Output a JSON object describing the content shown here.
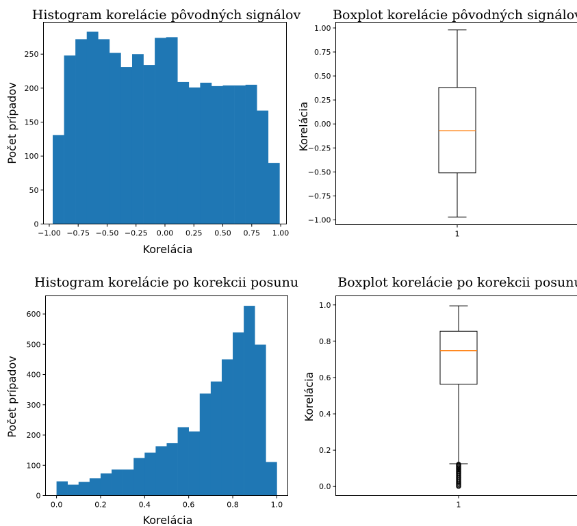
{
  "chart_data": [
    {
      "type": "histogram",
      "title": "Histogram korelácie pôvodných signálov",
      "xlabel": "Korelácia",
      "ylabel": "Počet prípadov",
      "xlim": [
        -1.05,
        1.05
      ],
      "ylim": [
        0,
        297
      ],
      "bin_edges": [
        -0.97,
        -0.872,
        -0.774,
        -0.676,
        -0.578,
        -0.48,
        -0.382,
        -0.284,
        -0.186,
        -0.088,
        0.01,
        0.108,
        0.206,
        0.304,
        0.402,
        0.5,
        0.598,
        0.696,
        0.794,
        0.892,
        0.99
      ],
      "counts": [
        131,
        248,
        272,
        283,
        272,
        252,
        231,
        250,
        234,
        274,
        275,
        209,
        201,
        208,
        203,
        204,
        204,
        205,
        167,
        90
      ],
      "xticks": [
        -1.0,
        -0.75,
        -0.5,
        -0.25,
        0.0,
        0.25,
        0.5,
        0.75,
        1.0
      ],
      "xtick_labels": [
        "−1.00",
        "−0.75",
        "−0.50",
        "−0.25",
        "0.00",
        "0.25",
        "0.50",
        "0.75",
        "1.00"
      ],
      "yticks": [
        0,
        50,
        100,
        150,
        200,
        250
      ],
      "ytick_labels": [
        "0",
        "50",
        "100",
        "150",
        "200",
        "250"
      ]
    },
    {
      "type": "boxplot",
      "title": "Boxplot korelácie pôvodných signálov",
      "xlabel": "",
      "ylabel": "Korelácia",
      "ylim": [
        -1.05,
        1.06
      ],
      "category": "1",
      "whisker_low": -0.97,
      "q1": -0.51,
      "median": -0.07,
      "q3": 0.38,
      "whisker_high": 0.98,
      "outliers": [],
      "yticks": [
        -1.0,
        -0.75,
        -0.5,
        -0.25,
        0.0,
        0.25,
        0.5,
        0.75,
        1.0
      ],
      "ytick_labels": [
        "−1.00",
        "−0.75",
        "−0.50",
        "−0.25",
        "0.00",
        "0.25",
        "0.50",
        "0.75",
        "1.00"
      ]
    },
    {
      "type": "histogram",
      "title": "Histogram korelácie po korekcii posunu",
      "xlabel": "Korelácia",
      "ylabel": "Počet prípadov",
      "xlim": [
        -0.05,
        1.05
      ],
      "ylim": [
        0,
        660
      ],
      "bin_edges": [
        0.0,
        0.05,
        0.1,
        0.15,
        0.2,
        0.25,
        0.3,
        0.35,
        0.4,
        0.45,
        0.5,
        0.55,
        0.6,
        0.65,
        0.7,
        0.75,
        0.8,
        0.85,
        0.9,
        0.95,
        1.0
      ],
      "counts": [
        47,
        36,
        45,
        57,
        73,
        86,
        86,
        124,
        142,
        163,
        173,
        226,
        212,
        337,
        377,
        450,
        539,
        627,
        499,
        111
      ],
      "xticks": [
        0.0,
        0.2,
        0.4,
        0.6,
        0.8,
        1.0
      ],
      "xtick_labels": [
        "0.0",
        "0.2",
        "0.4",
        "0.6",
        "0.8",
        "1.0"
      ],
      "yticks": [
        0,
        100,
        200,
        300,
        400,
        500,
        600
      ],
      "ytick_labels": [
        "0",
        "100",
        "200",
        "300",
        "400",
        "500",
        "600"
      ]
    },
    {
      "type": "boxplot",
      "title": "Boxplot korelácie po korekcii posunu",
      "xlabel": "",
      "ylabel": "Korelácia",
      "ylim": [
        -0.05,
        1.05
      ],
      "category": "1",
      "whisker_low": 0.125,
      "q1": 0.563,
      "median": 0.748,
      "q3": 0.855,
      "whisker_high": 0.995,
      "outliers": [
        0.122,
        0.118,
        0.113,
        0.108,
        0.103,
        0.098,
        0.093,
        0.088,
        0.082,
        0.077,
        0.071,
        0.065,
        0.059,
        0.053,
        0.047,
        0.041,
        0.035,
        0.029,
        0.023,
        0.017,
        0.011,
        0.006,
        0.001
      ],
      "yticks": [
        0.0,
        0.2,
        0.4,
        0.6,
        0.8,
        1.0
      ],
      "ytick_labels": [
        "0.0",
        "0.2",
        "0.4",
        "0.6",
        "0.8",
        "1.0"
      ]
    }
  ]
}
